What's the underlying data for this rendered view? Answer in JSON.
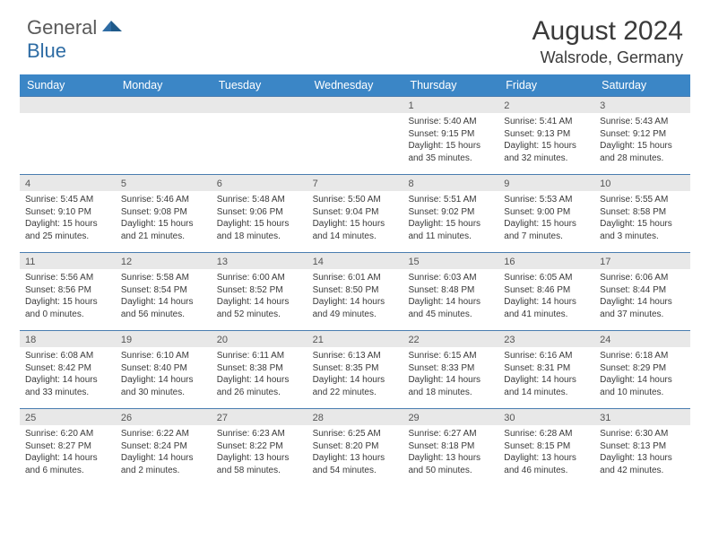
{
  "brand": {
    "text_general": "General",
    "text_blue": "Blue",
    "logo_color": "#2e6ca4"
  },
  "title": "August 2024",
  "location": "Walsrode, Germany",
  "colors": {
    "header_bg": "#3b86c6",
    "header_text": "#ffffff",
    "daynum_bg": "#e8e8e8",
    "daynum_text": "#555555",
    "border": "#4a7db0",
    "body_text": "#3a3a3a"
  },
  "day_headers": [
    "Sunday",
    "Monday",
    "Tuesday",
    "Wednesday",
    "Thursday",
    "Friday",
    "Saturday"
  ],
  "weeks": [
    [
      {
        "n": "",
        "sr": "",
        "ss": "",
        "dl": ""
      },
      {
        "n": "",
        "sr": "",
        "ss": "",
        "dl": ""
      },
      {
        "n": "",
        "sr": "",
        "ss": "",
        "dl": ""
      },
      {
        "n": "",
        "sr": "",
        "ss": "",
        "dl": ""
      },
      {
        "n": "1",
        "sr": "Sunrise: 5:40 AM",
        "ss": "Sunset: 9:15 PM",
        "dl": "Daylight: 15 hours and 35 minutes."
      },
      {
        "n": "2",
        "sr": "Sunrise: 5:41 AM",
        "ss": "Sunset: 9:13 PM",
        "dl": "Daylight: 15 hours and 32 minutes."
      },
      {
        "n": "3",
        "sr": "Sunrise: 5:43 AM",
        "ss": "Sunset: 9:12 PM",
        "dl": "Daylight: 15 hours and 28 minutes."
      }
    ],
    [
      {
        "n": "4",
        "sr": "Sunrise: 5:45 AM",
        "ss": "Sunset: 9:10 PM",
        "dl": "Daylight: 15 hours and 25 minutes."
      },
      {
        "n": "5",
        "sr": "Sunrise: 5:46 AM",
        "ss": "Sunset: 9:08 PM",
        "dl": "Daylight: 15 hours and 21 minutes."
      },
      {
        "n": "6",
        "sr": "Sunrise: 5:48 AM",
        "ss": "Sunset: 9:06 PM",
        "dl": "Daylight: 15 hours and 18 minutes."
      },
      {
        "n": "7",
        "sr": "Sunrise: 5:50 AM",
        "ss": "Sunset: 9:04 PM",
        "dl": "Daylight: 15 hours and 14 minutes."
      },
      {
        "n": "8",
        "sr": "Sunrise: 5:51 AM",
        "ss": "Sunset: 9:02 PM",
        "dl": "Daylight: 15 hours and 11 minutes."
      },
      {
        "n": "9",
        "sr": "Sunrise: 5:53 AM",
        "ss": "Sunset: 9:00 PM",
        "dl": "Daylight: 15 hours and 7 minutes."
      },
      {
        "n": "10",
        "sr": "Sunrise: 5:55 AM",
        "ss": "Sunset: 8:58 PM",
        "dl": "Daylight: 15 hours and 3 minutes."
      }
    ],
    [
      {
        "n": "11",
        "sr": "Sunrise: 5:56 AM",
        "ss": "Sunset: 8:56 PM",
        "dl": "Daylight: 15 hours and 0 minutes."
      },
      {
        "n": "12",
        "sr": "Sunrise: 5:58 AM",
        "ss": "Sunset: 8:54 PM",
        "dl": "Daylight: 14 hours and 56 minutes."
      },
      {
        "n": "13",
        "sr": "Sunrise: 6:00 AM",
        "ss": "Sunset: 8:52 PM",
        "dl": "Daylight: 14 hours and 52 minutes."
      },
      {
        "n": "14",
        "sr": "Sunrise: 6:01 AM",
        "ss": "Sunset: 8:50 PM",
        "dl": "Daylight: 14 hours and 49 minutes."
      },
      {
        "n": "15",
        "sr": "Sunrise: 6:03 AM",
        "ss": "Sunset: 8:48 PM",
        "dl": "Daylight: 14 hours and 45 minutes."
      },
      {
        "n": "16",
        "sr": "Sunrise: 6:05 AM",
        "ss": "Sunset: 8:46 PM",
        "dl": "Daylight: 14 hours and 41 minutes."
      },
      {
        "n": "17",
        "sr": "Sunrise: 6:06 AM",
        "ss": "Sunset: 8:44 PM",
        "dl": "Daylight: 14 hours and 37 minutes."
      }
    ],
    [
      {
        "n": "18",
        "sr": "Sunrise: 6:08 AM",
        "ss": "Sunset: 8:42 PM",
        "dl": "Daylight: 14 hours and 33 minutes."
      },
      {
        "n": "19",
        "sr": "Sunrise: 6:10 AM",
        "ss": "Sunset: 8:40 PM",
        "dl": "Daylight: 14 hours and 30 minutes."
      },
      {
        "n": "20",
        "sr": "Sunrise: 6:11 AM",
        "ss": "Sunset: 8:38 PM",
        "dl": "Daylight: 14 hours and 26 minutes."
      },
      {
        "n": "21",
        "sr": "Sunrise: 6:13 AM",
        "ss": "Sunset: 8:35 PM",
        "dl": "Daylight: 14 hours and 22 minutes."
      },
      {
        "n": "22",
        "sr": "Sunrise: 6:15 AM",
        "ss": "Sunset: 8:33 PM",
        "dl": "Daylight: 14 hours and 18 minutes."
      },
      {
        "n": "23",
        "sr": "Sunrise: 6:16 AM",
        "ss": "Sunset: 8:31 PM",
        "dl": "Daylight: 14 hours and 14 minutes."
      },
      {
        "n": "24",
        "sr": "Sunrise: 6:18 AM",
        "ss": "Sunset: 8:29 PM",
        "dl": "Daylight: 14 hours and 10 minutes."
      }
    ],
    [
      {
        "n": "25",
        "sr": "Sunrise: 6:20 AM",
        "ss": "Sunset: 8:27 PM",
        "dl": "Daylight: 14 hours and 6 minutes."
      },
      {
        "n": "26",
        "sr": "Sunrise: 6:22 AM",
        "ss": "Sunset: 8:24 PM",
        "dl": "Daylight: 14 hours and 2 minutes."
      },
      {
        "n": "27",
        "sr": "Sunrise: 6:23 AM",
        "ss": "Sunset: 8:22 PM",
        "dl": "Daylight: 13 hours and 58 minutes."
      },
      {
        "n": "28",
        "sr": "Sunrise: 6:25 AM",
        "ss": "Sunset: 8:20 PM",
        "dl": "Daylight: 13 hours and 54 minutes."
      },
      {
        "n": "29",
        "sr": "Sunrise: 6:27 AM",
        "ss": "Sunset: 8:18 PM",
        "dl": "Daylight: 13 hours and 50 minutes."
      },
      {
        "n": "30",
        "sr": "Sunrise: 6:28 AM",
        "ss": "Sunset: 8:15 PM",
        "dl": "Daylight: 13 hours and 46 minutes."
      },
      {
        "n": "31",
        "sr": "Sunrise: 6:30 AM",
        "ss": "Sunset: 8:13 PM",
        "dl": "Daylight: 13 hours and 42 minutes."
      }
    ]
  ]
}
